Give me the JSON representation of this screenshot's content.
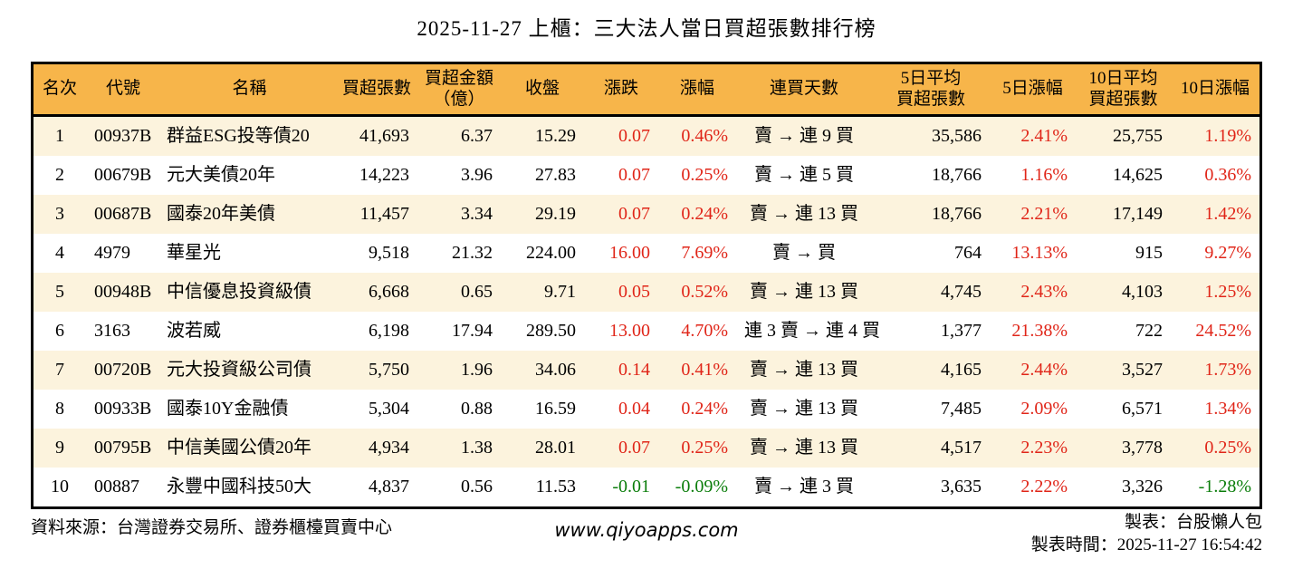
{
  "title": "2025-11-27 上櫃：三大法人當日買超張數排行榜",
  "colors": {
    "header_bg": "#F7B54A",
    "row_stripe_bg": "#FCF3DD",
    "row_plain_bg": "#FFFFFF",
    "up": "#E02518",
    "down": "#0A7D0A",
    "border": "#000000"
  },
  "table": {
    "columns": [
      {
        "key": "rank",
        "label": "名次",
        "align": "center"
      },
      {
        "key": "code",
        "label": "代號",
        "align": "left"
      },
      {
        "key": "name",
        "label": "名稱",
        "align": "left"
      },
      {
        "key": "shares",
        "label": "買超張數",
        "align": "right"
      },
      {
        "key": "amount",
        "label": "買超金額\n（億）",
        "align": "right"
      },
      {
        "key": "close",
        "label": "收盤",
        "align": "right"
      },
      {
        "key": "change",
        "label": "漲跌",
        "align": "right",
        "signed": true
      },
      {
        "key": "change_pct",
        "label": "漲幅",
        "align": "right",
        "signed": true
      },
      {
        "key": "streak",
        "label": "連買天數",
        "align": "center"
      },
      {
        "key": "avg5",
        "label": "5日平均\n買超張數",
        "align": "right"
      },
      {
        "key": "pct5",
        "label": "5日漲幅",
        "align": "right",
        "signed": true
      },
      {
        "key": "avg10",
        "label": "10日平均\n買超張數",
        "align": "right"
      },
      {
        "key": "pct10",
        "label": "10日漲幅",
        "align": "right",
        "signed": true
      }
    ],
    "rows": [
      {
        "rank": "1",
        "code": "00937B",
        "name": "群益ESG投等債20",
        "shares": "41,693",
        "amount": "6.37",
        "close": "15.29",
        "change": "0.07",
        "change_pct": "0.46%",
        "streak": "賣 → 連 9 買",
        "avg5": "35,586",
        "pct5": "2.41%",
        "avg10": "25,755",
        "pct10": "1.19%"
      },
      {
        "rank": "2",
        "code": "00679B",
        "name": "元大美債20年",
        "shares": "14,223",
        "amount": "3.96",
        "close": "27.83",
        "change": "0.07",
        "change_pct": "0.25%",
        "streak": "賣 → 連 5 買",
        "avg5": "18,766",
        "pct5": "1.16%",
        "avg10": "14,625",
        "pct10": "0.36%"
      },
      {
        "rank": "3",
        "code": "00687B",
        "name": "國泰20年美債",
        "shares": "11,457",
        "amount": "3.34",
        "close": "29.19",
        "change": "0.07",
        "change_pct": "0.24%",
        "streak": "賣 → 連 13 買",
        "avg5": "18,766",
        "pct5": "2.21%",
        "avg10": "17,149",
        "pct10": "1.42%"
      },
      {
        "rank": "4",
        "code": "4979",
        "name": "華星光",
        "shares": "9,518",
        "amount": "21.32",
        "close": "224.00",
        "change": "16.00",
        "change_pct": "7.69%",
        "streak": "賣 → 買",
        "avg5": "764",
        "pct5": "13.13%",
        "avg10": "915",
        "pct10": "9.27%"
      },
      {
        "rank": "5",
        "code": "00948B",
        "name": "中信優息投資級債",
        "shares": "6,668",
        "amount": "0.65",
        "close": "9.71",
        "change": "0.05",
        "change_pct": "0.52%",
        "streak": "賣 → 連 13 買",
        "avg5": "4,745",
        "pct5": "2.43%",
        "avg10": "4,103",
        "pct10": "1.25%"
      },
      {
        "rank": "6",
        "code": "3163",
        "name": "波若威",
        "shares": "6,198",
        "amount": "17.94",
        "close": "289.50",
        "change": "13.00",
        "change_pct": "4.70%",
        "streak": "連 3 賣 → 連 4 買",
        "avg5": "1,377",
        "pct5": "21.38%",
        "avg10": "722",
        "pct10": "24.52%"
      },
      {
        "rank": "7",
        "code": "00720B",
        "name": "元大投資級公司債",
        "shares": "5,750",
        "amount": "1.96",
        "close": "34.06",
        "change": "0.14",
        "change_pct": "0.41%",
        "streak": "賣 → 連 13 買",
        "avg5": "4,165",
        "pct5": "2.44%",
        "avg10": "3,527",
        "pct10": "1.73%"
      },
      {
        "rank": "8",
        "code": "00933B",
        "name": "國泰10Y金融債",
        "shares": "5,304",
        "amount": "0.88",
        "close": "16.59",
        "change": "0.04",
        "change_pct": "0.24%",
        "streak": "賣 → 連 13 買",
        "avg5": "7,485",
        "pct5": "2.09%",
        "avg10": "6,571",
        "pct10": "1.34%"
      },
      {
        "rank": "9",
        "code": "00795B",
        "name": "中信美國公債20年",
        "shares": "4,934",
        "amount": "1.38",
        "close": "28.01",
        "change": "0.07",
        "change_pct": "0.25%",
        "streak": "賣 → 連 13 買",
        "avg5": "4,517",
        "pct5": "2.23%",
        "avg10": "3,778",
        "pct10": "0.25%"
      },
      {
        "rank": "10",
        "code": "00887",
        "name": "永豐中國科技50大",
        "shares": "4,837",
        "amount": "0.56",
        "close": "11.53",
        "change": "-0.01",
        "change_pct": "-0.09%",
        "streak": "賣 → 連 3 買",
        "avg5": "3,635",
        "pct5": "2.22%",
        "avg10": "3,326",
        "pct10": "-1.28%"
      }
    ]
  },
  "footer": {
    "source": "資料來源：台灣證券交易所、證券櫃檯買賣中心",
    "site": "www.qiyoapps.com",
    "credit": "製表：台股懶人包",
    "generated": "製表時間：2025-11-27 16:54:42"
  }
}
